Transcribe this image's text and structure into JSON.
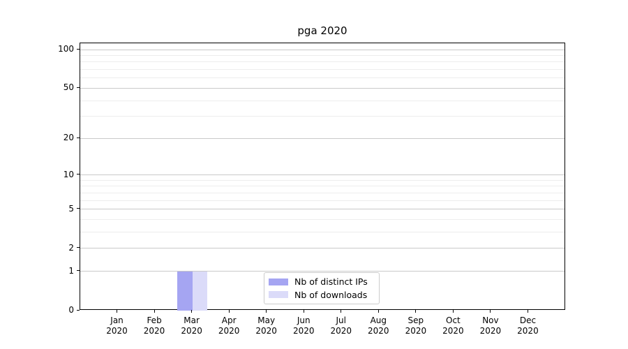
{
  "chart_data": {
    "type": "bar",
    "title": "pga 2020",
    "categories": [
      "Jan",
      "Feb",
      "Mar",
      "Apr",
      "May",
      "Jun",
      "Jul",
      "Aug",
      "Sep",
      "Oct",
      "Nov",
      "Dec"
    ],
    "year": "2020",
    "series": [
      {
        "name": "Nb of distinct IPs",
        "color": "#a5a5f2",
        "values": [
          0,
          0,
          1,
          0,
          0,
          0,
          0,
          0,
          0,
          0,
          0,
          0
        ]
      },
      {
        "name": "Nb of downloads",
        "color": "#dbdbf9",
        "values": [
          0,
          0,
          1,
          0,
          0,
          0,
          0,
          0,
          0,
          0,
          0,
          0
        ]
      }
    ],
    "xlabel": "",
    "ylabel": "",
    "yscale": "log1p",
    "ylim": [
      0,
      112
    ],
    "yticks": [
      0,
      1,
      2,
      5,
      10,
      20,
      50,
      100
    ],
    "major_gridlines": [
      1,
      2,
      5,
      10,
      20,
      50,
      100
    ],
    "minor_gridlines": [
      3,
      4,
      6,
      7,
      8,
      9,
      30,
      40,
      60,
      70,
      80,
      90
    ],
    "grid_major_color": "#c9c9c9",
    "grid_minor_color": "#ededed",
    "legend_position": "lower center",
    "axis_color": "#000000",
    "background_color": "#ffffff"
  }
}
